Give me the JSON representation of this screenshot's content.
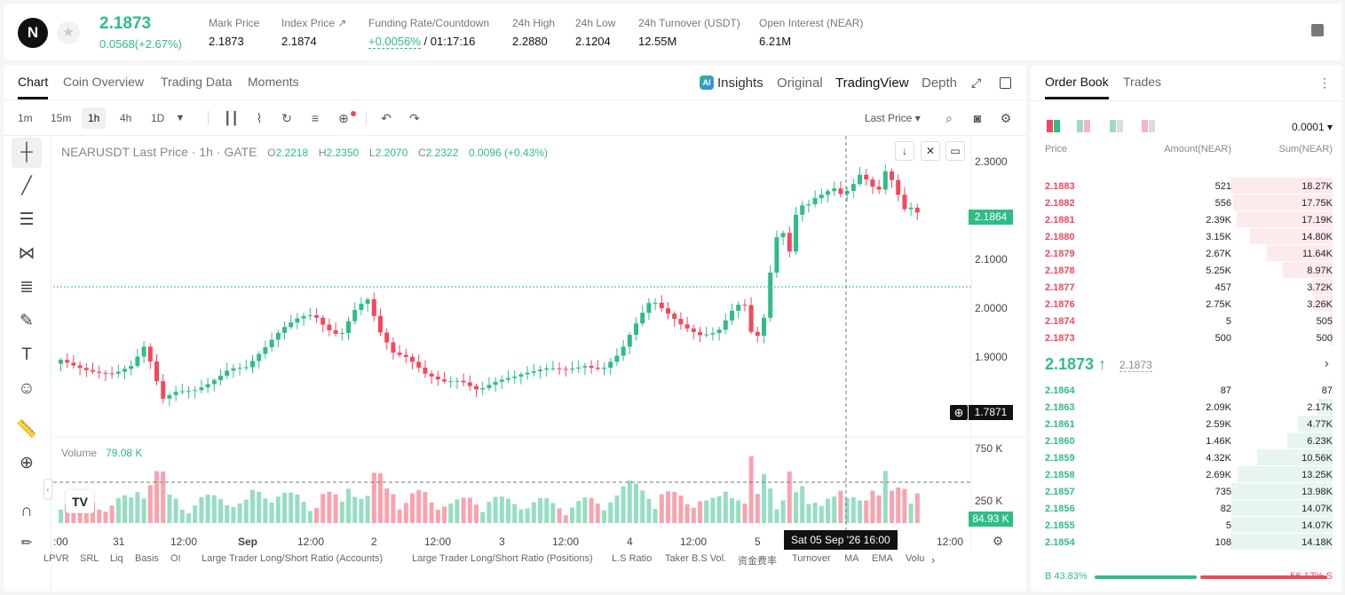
{
  "ticker": {
    "logo": "N",
    "last_price": "2.1873",
    "change": "0.0568(+2.67%)",
    "stats": [
      {
        "label": "Mark Price",
        "value": "2.1873"
      },
      {
        "label": "Index Price ↗",
        "value": "2.1874"
      },
      {
        "label": "Funding Rate/Countdown",
        "value_green": "+0.0056%",
        "value": " / 01:17:16"
      },
      {
        "label": "24h High",
        "value": "2.2880"
      },
      {
        "label": "24h Low",
        "value": "2.1204"
      },
      {
        "label": "24h Turnover (USDT)",
        "value": "12.55M"
      },
      {
        "label": "Open Interest (NEAR)",
        "value": "6.21M"
      }
    ]
  },
  "chart_tabs": [
    "Chart",
    "Coin Overview",
    "Trading Data",
    "Moments"
  ],
  "chart_tabs_right": {
    "insights": "Insights",
    "original": "Original",
    "tradingview": "TradingView",
    "depth": "Depth",
    "ai_badge": "AI"
  },
  "timeframes": [
    "1m",
    "15m",
    "1h",
    "4h",
    "1D"
  ],
  "last_price_select": "Last Price ▾",
  "legend": {
    "symbol": "NEARUSDT Last Price · 1h · GATE",
    "o_label": "O",
    "o": "2.2218",
    "h_label": "H",
    "h": "2.2350",
    "l_label": "L",
    "l": "2.2070",
    "c_label": "C",
    "c": "2.2322",
    "chg": "0.0096 (+0.43%)"
  },
  "volume_legend": {
    "label": "Volume",
    "value": "79.08 K"
  },
  "y_axis_labels": [
    "2.3000",
    "2.2000",
    "2.1000",
    "2.0000",
    "1.9000",
    "1.7871"
  ],
  "current_price_tag": "2.1864",
  "crosshair_price_tag": "1.7871",
  "volume_axis": [
    "750 K",
    "250 K"
  ],
  "volume_tag": "84.93 K",
  "x_axis_labels": [
    ":00",
    "31",
    "12:00",
    "Sep",
    "12:00",
    "2",
    "12:00",
    "3",
    "12:00",
    "4",
    "12:00",
    "5",
    "12:00"
  ],
  "date_tooltip": "Sat 05 Sep '26   16:00",
  "tv_logo": "TV",
  "indicators": [
    "LPVR",
    "SRL",
    "Liq",
    "Basis",
    "OI",
    "Large Trader Long/Short Ratio (Accounts)",
    "Large Trader Long/Short Ratio (Positions)",
    "L.S Ratio",
    "Taker B.S Vol.",
    "资金费率",
    "Turnover",
    "MA",
    "EMA",
    "Volu"
  ],
  "orderbook": {
    "tabs": [
      "Order Book",
      "Trades"
    ],
    "precision": "0.0001 ▾",
    "headers": {
      "price": "Price",
      "amount": "Amount(NEAR)",
      "sum": "Sum(NEAR)"
    },
    "asks": [
      {
        "price": "2.1883",
        "amount": "521",
        "sum": "18.27K",
        "fill": 1.0
      },
      {
        "price": "2.1882",
        "amount": "556",
        "sum": "17.75K",
        "fill": 0.97
      },
      {
        "price": "2.1881",
        "amount": "2.39K",
        "sum": "17.19K",
        "fill": 0.94
      },
      {
        "price": "2.1880",
        "amount": "3.15K",
        "sum": "14.80K",
        "fill": 0.81
      },
      {
        "price": "2.1879",
        "amount": "2.67K",
        "sum": "11.64K",
        "fill": 0.64
      },
      {
        "price": "2.1878",
        "amount": "5.25K",
        "sum": "8.97K",
        "fill": 0.49
      },
      {
        "price": "2.1877",
        "amount": "457",
        "sum": "3.72K",
        "fill": 0.2
      },
      {
        "price": "2.1876",
        "amount": "2.75K",
        "sum": "3.26K",
        "fill": 0.18
      },
      {
        "price": "2.1874",
        "amount": "5",
        "sum": "505",
        "fill": 0.03
      },
      {
        "price": "2.1873",
        "amount": "500",
        "sum": "500",
        "fill": 0.03
      }
    ],
    "mid_price": "2.1873 ↑",
    "mid_sub": "2.1873",
    "bids": [
      {
        "price": "2.1864",
        "amount": "87",
        "sum": "87",
        "fill": 0.01
      },
      {
        "price": "2.1863",
        "amount": "2.09K",
        "sum": "2.17K",
        "fill": 0.15
      },
      {
        "price": "2.1861",
        "amount": "2.59K",
        "sum": "4.77K",
        "fill": 0.34
      },
      {
        "price": "2.1860",
        "amount": "1.46K",
        "sum": "6.23K",
        "fill": 0.44
      },
      {
        "price": "2.1859",
        "amount": "4.32K",
        "sum": "10.56K",
        "fill": 0.74
      },
      {
        "price": "2.1858",
        "amount": "2.69K",
        "sum": "13.25K",
        "fill": 0.93
      },
      {
        "price": "2.1857",
        "amount": "735",
        "sum": "13.98K",
        "fill": 0.99
      },
      {
        "price": "2.1856",
        "amount": "82",
        "sum": "14.07K",
        "fill": 0.99
      },
      {
        "price": "2.1855",
        "amount": "5",
        "sum": "14.07K",
        "fill": 0.99
      },
      {
        "price": "2.1854",
        "amount": "108",
        "sum": "14.18K",
        "fill": 1.0
      }
    ],
    "buy_ratio_label": "B 43.83%",
    "sell_ratio_label": "56.17% S",
    "buy_ratio": 0.4383
  },
  "colors": {
    "up": "#2ebd85",
    "down": "#f6465d"
  }
}
